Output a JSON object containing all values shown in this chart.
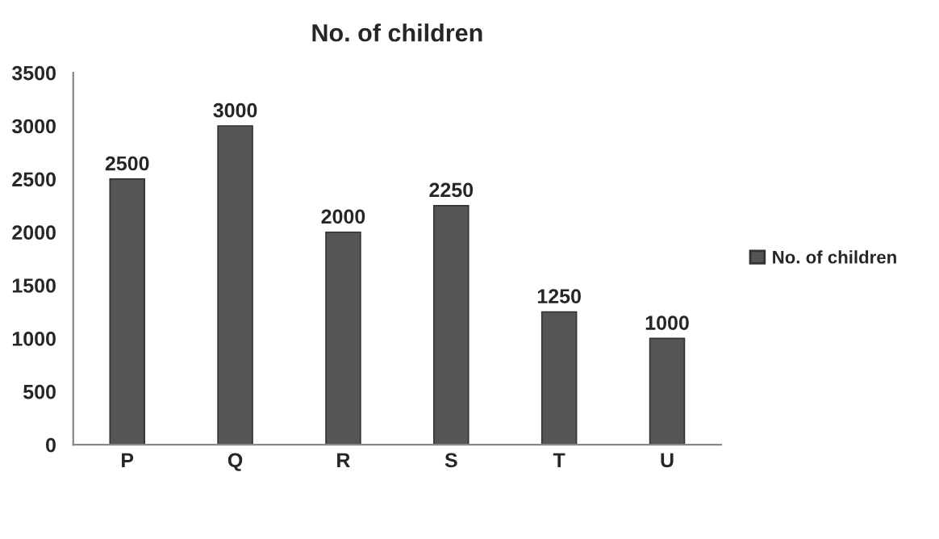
{
  "chart_data": {
    "type": "bar",
    "title": "No. of children",
    "categories": [
      "P",
      "Q",
      "R",
      "S",
      "T",
      "U"
    ],
    "series": [
      {
        "name": "No. of children",
        "color": "#555555",
        "values": [
          2500,
          3000,
          2000,
          2250,
          1250,
          1000
        ]
      }
    ],
    "ylim": [
      0,
      3500
    ],
    "yticks": [
      0,
      500,
      1000,
      1500,
      2000,
      2500,
      3000,
      3500
    ],
    "data_labels": true,
    "legend": "right",
    "grid": false
  }
}
